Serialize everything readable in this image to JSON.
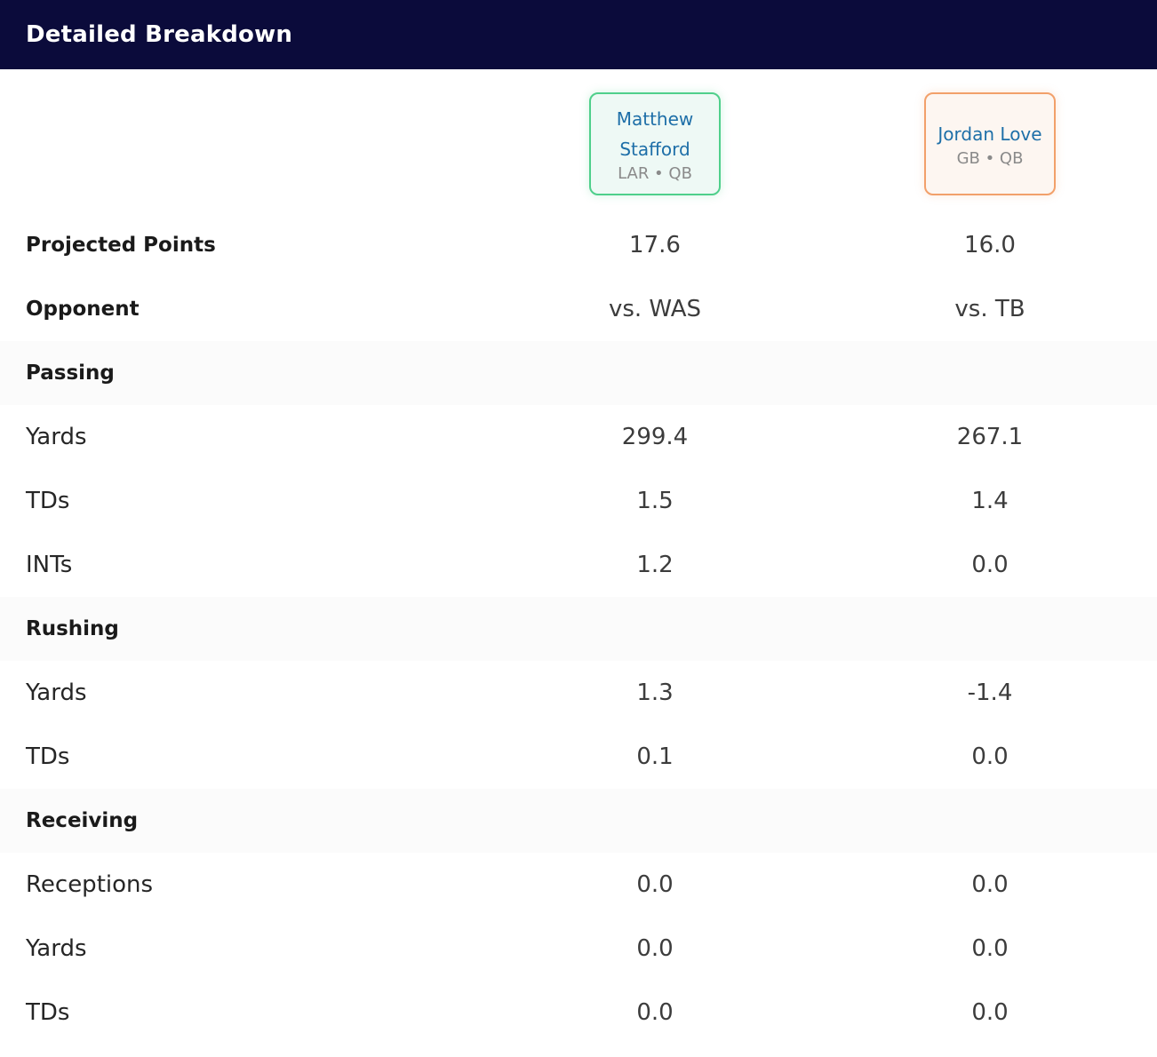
{
  "header": {
    "title": "Detailed Breakdown"
  },
  "players": [
    {
      "name": "Matthew Stafford",
      "team_pos": "LAR • QB",
      "accent": "#4fcf8b"
    },
    {
      "name": "Jordan Love",
      "team_pos": "GB • QB",
      "accent": "#f2a06a"
    }
  ],
  "summary": [
    {
      "label": "Projected Points",
      "v1": "17.6",
      "v2": "16.0"
    },
    {
      "label": "Opponent",
      "v1": "vs. WAS",
      "v2": "vs. TB"
    }
  ],
  "sections": [
    {
      "title": "Passing",
      "rows": [
        {
          "label": "Yards",
          "v1": "299.4",
          "v2": "267.1"
        },
        {
          "label": "TDs",
          "v1": "1.5",
          "v2": "1.4"
        },
        {
          "label": "INTs",
          "v1": "1.2",
          "v2": "0.0"
        }
      ]
    },
    {
      "title": "Rushing",
      "rows": [
        {
          "label": "Yards",
          "v1": "1.3",
          "v2": "-1.4"
        },
        {
          "label": "TDs",
          "v1": "0.1",
          "v2": "0.0"
        }
      ]
    },
    {
      "title": "Receiving",
      "rows": [
        {
          "label": "Receptions",
          "v1": "0.0",
          "v2": "0.0"
        },
        {
          "label": "Yards",
          "v1": "0.0",
          "v2": "0.0"
        },
        {
          "label": "TDs",
          "v1": "0.0",
          "v2": "0.0"
        }
      ]
    }
  ]
}
